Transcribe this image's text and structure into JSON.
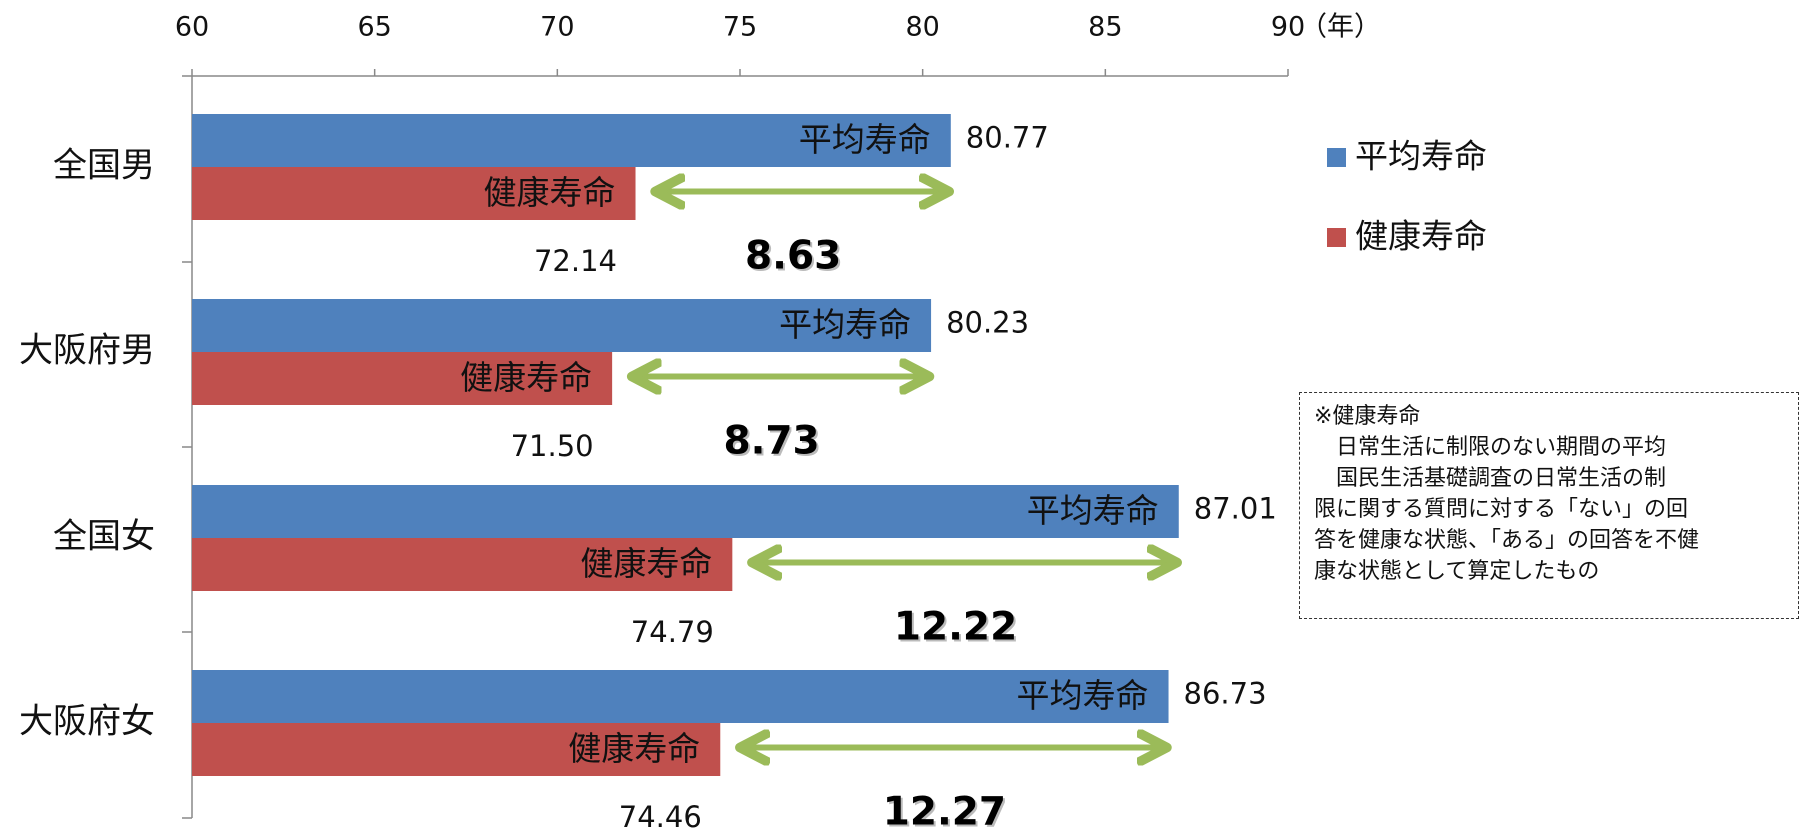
{
  "chart_data": {
    "type": "bar",
    "orientation": "horizontal",
    "categories": [
      "全国男",
      "大阪府男",
      "全国女",
      "大阪府女"
    ],
    "series": [
      {
        "name": "平均寿命",
        "color": "#4f81bd",
        "values": [
          80.77,
          80.23,
          87.01,
          86.73
        ]
      },
      {
        "name": "健康寿命",
        "color": "#c0504d",
        "values": [
          72.14,
          71.5,
          74.79,
          74.46
        ]
      }
    ],
    "value_labels": {
      "平均寿命": [
        "80.77",
        "80.23",
        "87.01",
        "86.73"
      ],
      "健康寿命": [
        "72.14",
        "71.50",
        "74.79",
        "74.46"
      ]
    },
    "bar_text": {
      "平均寿命": "平均寿命",
      "健康寿命": "健康寿命"
    },
    "differences": [
      "8.63",
      "8.73",
      "12.22",
      "12.27"
    ],
    "arrow_color": "#9bbb59",
    "x_ticks": [
      "60",
      "65",
      "70",
      "75",
      "80",
      "85",
      "90"
    ],
    "x_unit": "（年）",
    "xlim": [
      60,
      90
    ],
    "legend_position": "right",
    "legend": [
      "平均寿命",
      "健康寿命"
    ],
    "grid": false
  },
  "note": {
    "lines": [
      "※健康寿命",
      "　日常生活に制限のない期間の平均",
      "　国民生活基礎調査の日常生活の制",
      "限に関する質問に対する「ない」の回",
      "答を健康な状態、「ある」の回答を不健",
      "康な状態として算定したもの"
    ]
  }
}
